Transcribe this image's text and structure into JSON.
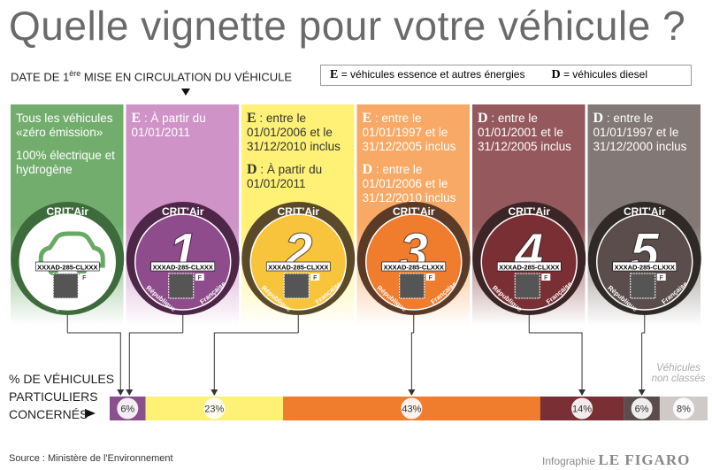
{
  "title": "Quelle vignette pour votre véhicule ?",
  "date_header": {
    "prefix": "DATE DE 1",
    "sup": "ère",
    "suffix": " MISE EN CIRCULATION DU VÉHICULE"
  },
  "legend": [
    {
      "key": "E",
      "text": "= véhicules essence et autres énergies"
    },
    {
      "key": "D",
      "text": "= véhicules diesel"
    }
  ],
  "badge": {
    "brand": "CRIT'Air",
    "plate": "XXXAD-285-CLXXX",
    "left": "République",
    "right": "Française",
    "flag": "F"
  },
  "columns": [
    {
      "color": "#72ad6e",
      "ring": "#3e6b3b",
      "inner": "#ffffff",
      "entries": [
        {
          "text": "Tous les véhicules «zéro émission»"
        },
        {
          "text": "100% électrique et hydrogène"
        }
      ]
    },
    {
      "color": "#cf93c7",
      "ring": "#4d2648",
      "inner": "#8e4c8c",
      "number": "1",
      "entries": [
        {
          "fuel": "E",
          "text": " : À partir du 01/01/2011"
        }
      ]
    },
    {
      "color": "#fff176",
      "ring": "#5a4a2a",
      "inner": "#f7c43c",
      "number": "2",
      "entries": [
        {
          "fuel": "E",
          "text": " : entre le 01/01/2006 et le 31/12/2010 inclus"
        },
        {
          "fuel": "D",
          "text": " : À partir du 01/01/2011"
        }
      ]
    },
    {
      "color": "#f7a965",
      "ring": "#5b3a27",
      "inner": "#f07c2e",
      "number": "3",
      "entries": [
        {
          "fuel": "E",
          "text": " : entre le 01/01/1997 et le 31/12/2005 inclus"
        },
        {
          "fuel": "D",
          "text": " : entre le 01/01/2006 et le 31/12/2010 inclus"
        }
      ]
    },
    {
      "color": "#94585d",
      "ring": "#3b2526",
      "inner": "#7a2f35",
      "number": "4",
      "entries": [
        {
          "fuel": "D",
          "text": " : entre le 01/01/2001 et le 31/12/2005 inclus"
        }
      ]
    },
    {
      "color": "#827876",
      "ring": "#2f2927",
      "inner": "#5a4d4b",
      "number": "5",
      "entries": [
        {
          "fuel": "D",
          "text": " : entre le 01/01/1997 et le 31/12/2000 inclus"
        }
      ]
    }
  ],
  "share": {
    "label": [
      "% DE VÉHICULES",
      "PARTICULIERS",
      "CONCERNÉS"
    ],
    "unclassified": "Véhicules non classés",
    "segments": [
      {
        "value": 6,
        "label": "6%",
        "color": "#8a4f8c"
      },
      {
        "value": 23,
        "label": "23%",
        "color": "#fff176"
      },
      {
        "value": 43,
        "label": "43%",
        "color": "#f07c2e"
      },
      {
        "value": 14,
        "label": "14%",
        "color": "#7a2f35"
      },
      {
        "value": 6,
        "label": "6%",
        "color": "#5a4d4b"
      },
      {
        "value": 8,
        "label": "8%",
        "color": "#cfcac8"
      }
    ]
  },
  "source": "Source : Ministère de l'Environnement",
  "credit": {
    "prefix": "Infographie",
    "brand": "LE FIGARO"
  }
}
